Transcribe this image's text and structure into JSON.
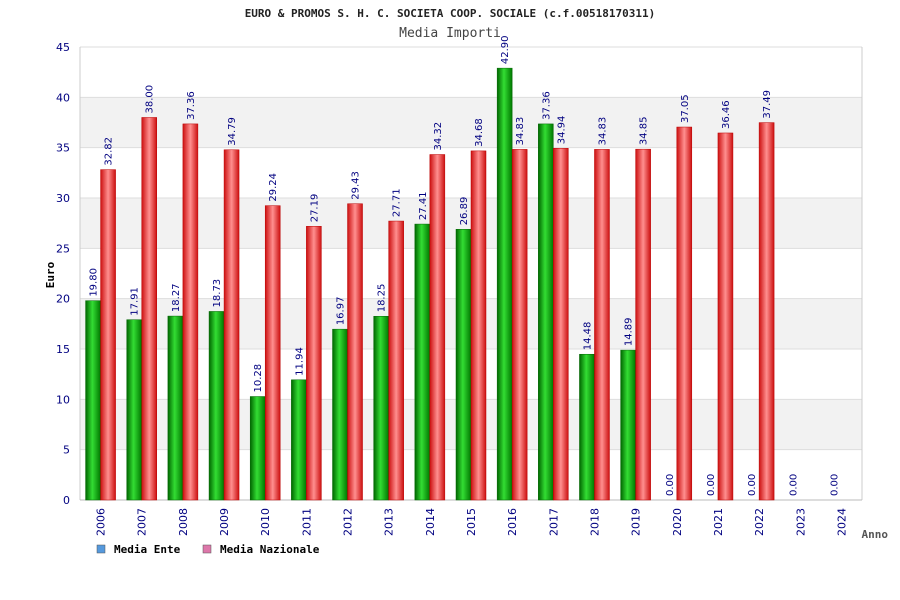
{
  "chart_data": {
    "type": "bar",
    "title": "EURO & PROMOS S. H. C. SOCIETA COOP. SOCIALE (c.f.00518170311)",
    "subtitle": "Media Importi",
    "xlabel": "Anno",
    "ylabel": "Euro",
    "ylim": [
      0,
      45
    ],
    "yticks": [
      0,
      5,
      10,
      15,
      20,
      25,
      30,
      35,
      40,
      45
    ],
    "grid": true,
    "legend_position": "bottom-left",
    "categories": [
      "2006",
      "2007",
      "2008",
      "2009",
      "2010",
      "2011",
      "2012",
      "2013",
      "2014",
      "2015",
      "2016",
      "2017",
      "2018",
      "2019",
      "2020",
      "2021",
      "2022",
      "2023",
      "2024"
    ],
    "series": [
      {
        "name": "Media Ente",
        "color": "#00aa00",
        "legend_color": "#5599dd",
        "values": [
          19.8,
          17.91,
          18.27,
          18.73,
          10.28,
          11.94,
          16.97,
          18.25,
          27.41,
          26.89,
          42.9,
          37.36,
          14.48,
          14.89,
          0.0,
          0.0,
          0.0,
          0.0,
          0.0
        ],
        "labels": [
          "19.80",
          "17.91",
          "18.27",
          "18.73",
          "10.28",
          "11.94",
          "16.97",
          "18.25",
          "27.41",
          "26.89",
          "42.90",
          "37.36",
          "14.48",
          "14.89",
          "0.00",
          "0.00",
          "0.00",
          "0.00",
          "0.00"
        ]
      },
      {
        "name": "Media Nazionale",
        "color": "#e82020",
        "legend_color": "#dd77aa",
        "values": [
          32.82,
          38.0,
          37.36,
          34.79,
          29.24,
          27.19,
          29.43,
          27.71,
          34.32,
          34.68,
          34.83,
          34.94,
          34.83,
          34.85,
          37.05,
          36.46,
          37.49,
          null,
          null
        ],
        "labels": [
          "32.82",
          "38.00",
          "37.36",
          "34.79",
          "29.24",
          "27.19",
          "29.43",
          "27.71",
          "34.32",
          "34.68",
          "34.83",
          "34.94",
          "34.83",
          "34.85",
          "37.05",
          "36.46",
          "37.49",
          "",
          ""
        ]
      }
    ]
  }
}
